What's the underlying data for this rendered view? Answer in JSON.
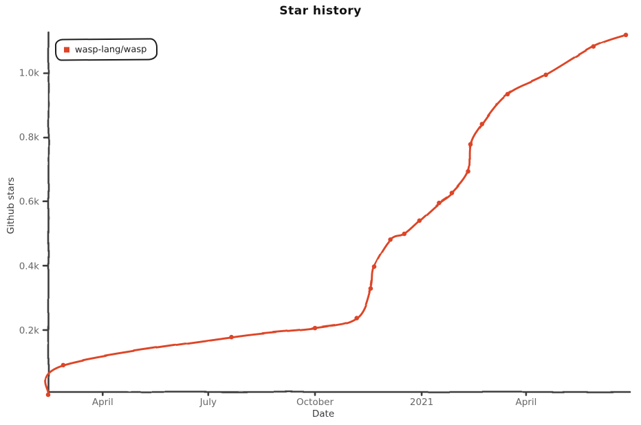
{
  "title": "Star history",
  "legend": {
    "series_label": "wasp-lang/wasp"
  },
  "axes": {
    "x_label": "Date",
    "y_label": "Github stars",
    "x_ticks": [
      {
        "label": "April",
        "date": "2020-04-01"
      },
      {
        "label": "July",
        "date": "2020-07-01"
      },
      {
        "label": "October",
        "date": "2020-10-01"
      },
      {
        "label": "2021",
        "date": "2021-01-01"
      },
      {
        "label": "April",
        "date": "2021-04-01"
      }
    ],
    "y_ticks": [
      {
        "label": "0.2k",
        "value": 200
      },
      {
        "label": "0.4k",
        "value": 400
      },
      {
        "label": "0.6k",
        "value": 600
      },
      {
        "label": "0.8k",
        "value": 800
      },
      {
        "label": "1.0k",
        "value": 1000
      }
    ]
  },
  "colors": {
    "series": "#dd4528",
    "axis": "#3d3d3d",
    "tick_label": "#666666",
    "title": "#111111",
    "background": "#ffffff"
  },
  "chart_data": {
    "type": "line",
    "title": "Star history",
    "xlabel": "Date",
    "ylabel": "Github stars",
    "x_range": [
      "2020-02-14",
      "2021-06-26"
    ],
    "ylim": [
      0,
      1130
    ],
    "grid": false,
    "legend_position": "top-left",
    "style": "xkcd-hand-drawn",
    "series": [
      {
        "name": "wasp-lang/wasp",
        "color": "#dd4528",
        "points": [
          {
            "date": "2020-02-14",
            "stars": 0
          },
          {
            "date": "2020-02-27",
            "stars": 92
          },
          {
            "date": "2020-07-21",
            "stars": 179
          },
          {
            "date": "2020-10-01",
            "stars": 207
          },
          {
            "date": "2020-11-06",
            "stars": 238
          },
          {
            "date": "2020-11-18",
            "stars": 330
          },
          {
            "date": "2020-11-21",
            "stars": 398
          },
          {
            "date": "2020-12-05",
            "stars": 482
          },
          {
            "date": "2020-12-17",
            "stars": 500
          },
          {
            "date": "2020-12-30",
            "stars": 541
          },
          {
            "date": "2021-01-16",
            "stars": 596
          },
          {
            "date": "2021-01-27",
            "stars": 627
          },
          {
            "date": "2021-02-10",
            "stars": 694
          },
          {
            "date": "2021-02-12",
            "stars": 778
          },
          {
            "date": "2021-02-22",
            "stars": 841
          },
          {
            "date": "2021-03-16",
            "stars": 934
          },
          {
            "date": "2021-04-18",
            "stars": 994
          },
          {
            "date": "2021-05-29",
            "stars": 1082
          },
          {
            "date": "2021-06-26",
            "stars": 1118
          }
        ]
      }
    ]
  }
}
